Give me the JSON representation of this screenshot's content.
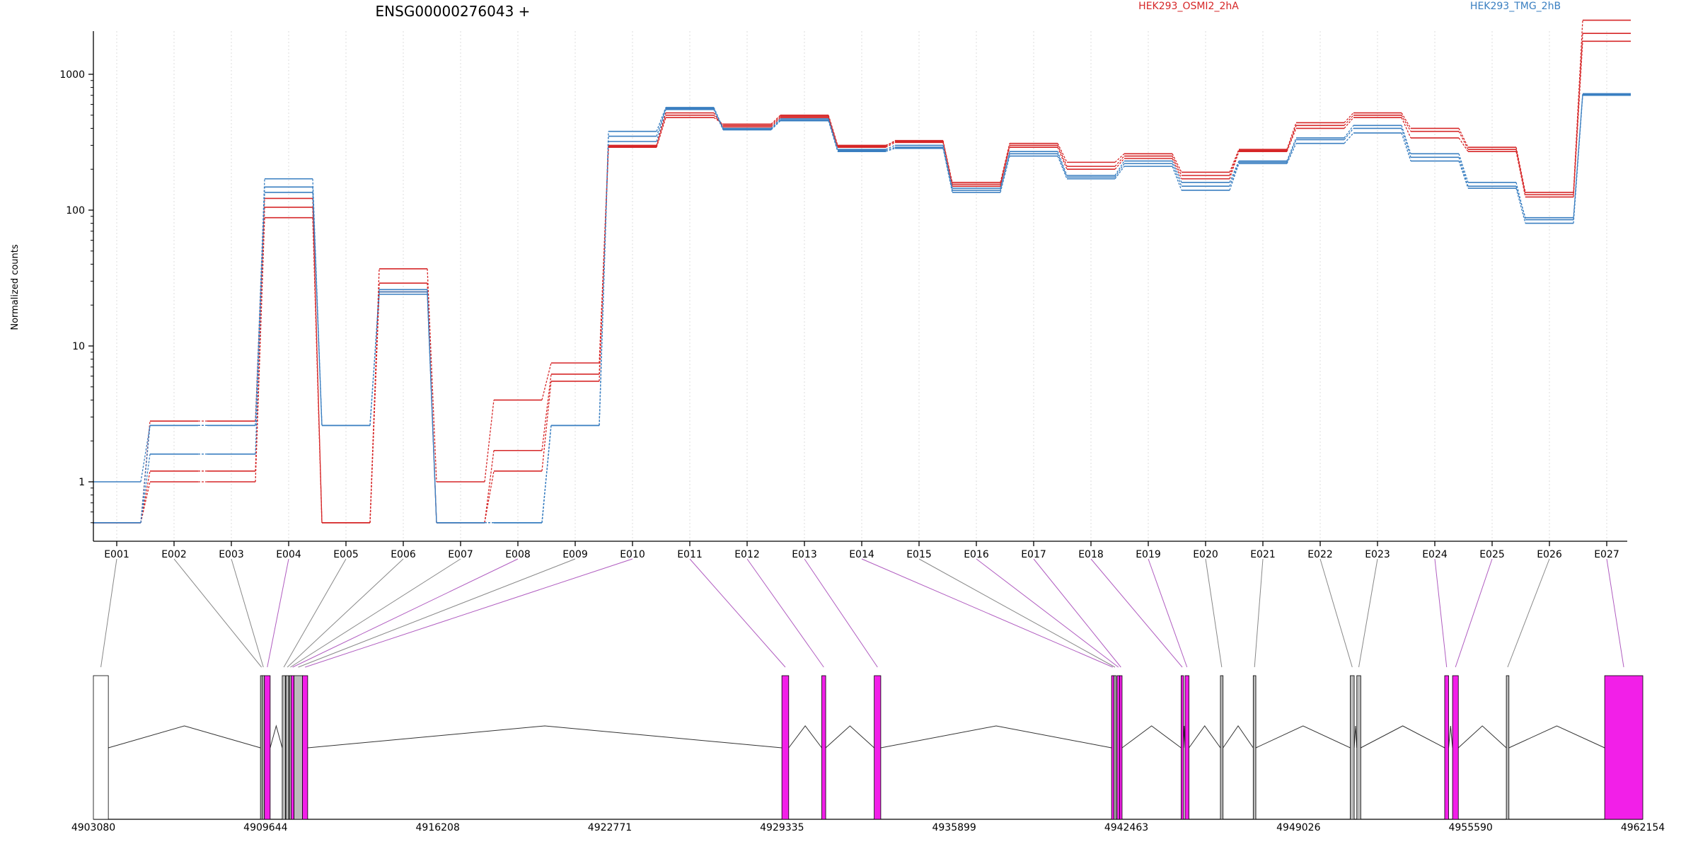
{
  "chart_data": {
    "type": "line",
    "title": "ENSG00000276043 +",
    "ylabel": "Normalized counts",
    "xlabel": "",
    "y_scale": "log",
    "ylim": [
      0.5,
      3200
    ],
    "y_ticks": [
      "1",
      "10",
      "100",
      "1000"
    ],
    "grid": "vertical dotted",
    "legend_placement": "top",
    "categories": [
      "E001",
      "E002",
      "E003",
      "E004",
      "E005",
      "E006",
      "E007",
      "E008",
      "E009",
      "E010",
      "E011",
      "E012",
      "E013",
      "E014",
      "E015",
      "E016",
      "E017",
      "E018",
      "E019",
      "E020",
      "E021",
      "E022",
      "E023",
      "E024",
      "E025",
      "E026",
      "E027"
    ],
    "series": [
      {
        "name": "HEK293_OSMI2_2hA",
        "color": "#d62728",
        "replicates": [
          [
            0.5,
            1.0,
            1.0,
            88,
            0.5,
            37,
            1.0,
            4.0,
            7.5,
            290,
            480,
            430,
            500,
            300,
            320,
            160,
            310,
            225,
            260,
            190,
            280,
            440,
            520,
            400,
            290,
            135,
            2500
          ],
          [
            0.5,
            1.2,
            1.2,
            105,
            0.5,
            29,
            0.5,
            1.7,
            6.2,
            295,
            500,
            420,
            490,
            295,
            325,
            155,
            300,
            210,
            250,
            180,
            275,
            420,
            500,
            380,
            280,
            130,
            2000
          ],
          [
            0.5,
            2.8,
            2.8,
            122,
            0.5,
            25,
            0.5,
            1.2,
            5.5,
            300,
            520,
            410,
            480,
            290,
            315,
            150,
            290,
            200,
            240,
            170,
            270,
            400,
            480,
            340,
            270,
            125,
            1750
          ]
        ]
      },
      {
        "name": "HEK293_TMG_2hB",
        "color": "#3a7fc1",
        "replicates": [
          [
            1.0,
            2.6,
            2.6,
            170,
            2.6,
            24,
            0.5,
            0.5,
            2.6,
            380,
            570,
            400,
            470,
            280,
            300,
            145,
            270,
            180,
            230,
            160,
            230,
            340,
            420,
            260,
            160,
            85,
            720
          ],
          [
            0.5,
            2.6,
            2.6,
            148,
            2.6,
            25,
            0.5,
            0.5,
            2.6,
            350,
            560,
            395,
            460,
            275,
            290,
            140,
            260,
            175,
            220,
            150,
            225,
            330,
            400,
            245,
            150,
            88,
            710
          ],
          [
            0.5,
            1.6,
            1.6,
            135,
            2.6,
            26,
            0.5,
            0.5,
            2.6,
            320,
            550,
            390,
            455,
            270,
            285,
            135,
            250,
            170,
            210,
            140,
            220,
            310,
            370,
            230,
            145,
            80,
            700
          ]
        ]
      }
    ],
    "legend": [
      {
        "label": "HEK293_OSMI2_2hA",
        "color": "#d62728"
      },
      {
        "label": "HEK293_TMG_2hB",
        "color": "#3a7fc1"
      }
    ],
    "gene_model": {
      "coordinate_range": [
        4903080,
        4962154
      ],
      "tick_labels": [
        "4903080",
        "4909644",
        "4916208",
        "4922771",
        "4929335",
        "4935899",
        "4942463",
        "4949026",
        "4955590",
        "4962154"
      ],
      "exons": [
        {
          "id": "E001",
          "start": 4903080,
          "end": 4903650,
          "color": "#ffffff"
        },
        {
          "id": "E002",
          "start": 4909450,
          "end": 4909520,
          "color": "#bbbbbb"
        },
        {
          "id": "E003",
          "start": 4909520,
          "end": 4909590,
          "color": "#bbbbbb"
        },
        {
          "id": "E004",
          "start": 4909600,
          "end": 4909820,
          "color": "#f21fe8"
        },
        {
          "id": "E005",
          "start": 4910280,
          "end": 4910400,
          "color": "#bbbbbb"
        },
        {
          "id": "E006",
          "start": 4910420,
          "end": 4910530,
          "color": "#bbbbbb"
        },
        {
          "id": "E007",
          "start": 4910550,
          "end": 4910620,
          "color": "#bbbbbb"
        },
        {
          "id": "E008",
          "start": 4910620,
          "end": 4910730,
          "color": "#f21fe8"
        },
        {
          "id": "E009",
          "start": 4910730,
          "end": 4911050,
          "color": "#bbbbbb"
        },
        {
          "id": "E010",
          "start": 4911050,
          "end": 4911250,
          "color": "#f21fe8"
        },
        {
          "id": "E011",
          "start": 4929330,
          "end": 4929590,
          "color": "#f21fe8"
        },
        {
          "id": "E012",
          "start": 4930850,
          "end": 4931000,
          "color": "#f21fe8"
        },
        {
          "id": "E013",
          "start": 4932850,
          "end": 4933100,
          "color": "#f21fe8"
        },
        {
          "id": "E014",
          "start": 4941900,
          "end": 4941990,
          "color": "#f21fe8"
        },
        {
          "id": "E015",
          "start": 4941990,
          "end": 4942070,
          "color": "#bbbbbb"
        },
        {
          "id": "E016",
          "start": 4942110,
          "end": 4942210,
          "color": "#f21fe8"
        },
        {
          "id": "E017",
          "start": 4942210,
          "end": 4942300,
          "color": "#f21fe8"
        },
        {
          "id": "E018",
          "start": 4944550,
          "end": 4944640,
          "color": "#f21fe8"
        },
        {
          "id": "E019",
          "start": 4944700,
          "end": 4944850,
          "color": "#f21fe8"
        },
        {
          "id": "E020",
          "start": 4946050,
          "end": 4946150,
          "color": "#bbbbbb"
        },
        {
          "id": "E021",
          "start": 4947300,
          "end": 4947400,
          "color": "#bbbbbb"
        },
        {
          "id": "E022",
          "start": 4951000,
          "end": 4951150,
          "color": "#bbbbbb"
        },
        {
          "id": "E023",
          "start": 4951250,
          "end": 4951400,
          "color": "#bbbbbb"
        },
        {
          "id": "E024",
          "start": 4954600,
          "end": 4954750,
          "color": "#f21fe8"
        },
        {
          "id": "E025",
          "start": 4954900,
          "end": 4955120,
          "color": "#f21fe8"
        },
        {
          "id": "E026",
          "start": 4956950,
          "end": 4957050,
          "color": "#bbbbbb"
        },
        {
          "id": "E027",
          "start": 4960700,
          "end": 4962154,
          "color": "#f21fe8"
        }
      ]
    }
  }
}
